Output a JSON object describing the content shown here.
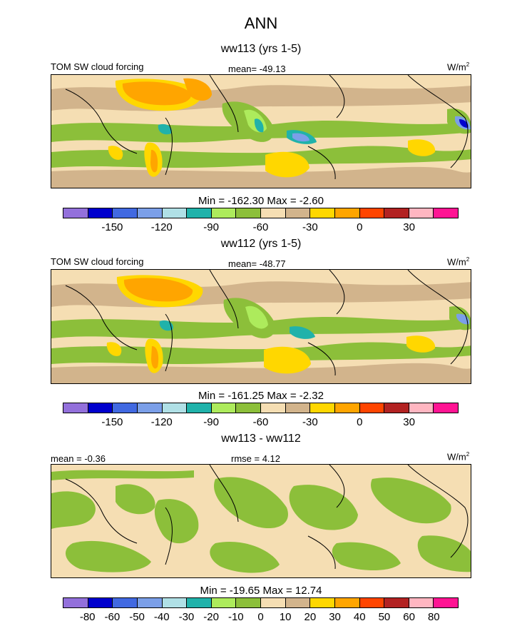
{
  "title": "ANN",
  "palette": [
    "#9370db",
    "#0000cd",
    "#4169e1",
    "#7b9fe8",
    "#b0e0e6",
    "#20b2aa",
    "#adeb5c",
    "#8cbf3a",
    "#f5deb3",
    "#d2b48c",
    "#ffd700",
    "#ffa500",
    "#ff4500",
    "#b22222",
    "#ffb6c1",
    "#ff1493"
  ],
  "panels": [
    {
      "subtitle": "ww113 (yrs 1-5)",
      "left_label": "TOM SW cloud forcing",
      "center_label": "mean= -49.13",
      "units": "W/m",
      "units_sup": "2",
      "minmax": "Min = -162.30 Max =  -2.60",
      "ticks": [
        "-150",
        "-120",
        "-90",
        "-60",
        "-30",
        "0",
        "30"
      ],
      "tick_positions": [
        2,
        4,
        6,
        8,
        10,
        12,
        14
      ]
    },
    {
      "subtitle": "ww112 (yrs 1-5)",
      "left_label": "TOM SW cloud forcing",
      "center_label": "mean= -48.77",
      "units": "W/m",
      "units_sup": "2",
      "minmax": "Min = -161.25 Max =  -2.32",
      "ticks": [
        "-150",
        "-120",
        "-90",
        "-60",
        "-30",
        "0",
        "30"
      ],
      "tick_positions": [
        2,
        4,
        6,
        8,
        10,
        12,
        14
      ]
    },
    {
      "subtitle": "ww113 - ww112",
      "left_label": "mean =  -0.36",
      "center_label": "rmse =   4.12",
      "units": "W/m",
      "units_sup": "2",
      "minmax": "Min = -19.65 Max =  12.74",
      "ticks": [
        "-80",
        "-60",
        "-50",
        "-40",
        "-30",
        "-20",
        "-10",
        "0",
        "10",
        "20",
        "30",
        "40",
        "50",
        "60",
        "80"
      ],
      "tick_positions": [
        1,
        2,
        3,
        4,
        5,
        6,
        7,
        8,
        9,
        10,
        11,
        12,
        13,
        14,
        15
      ]
    }
  ]
}
